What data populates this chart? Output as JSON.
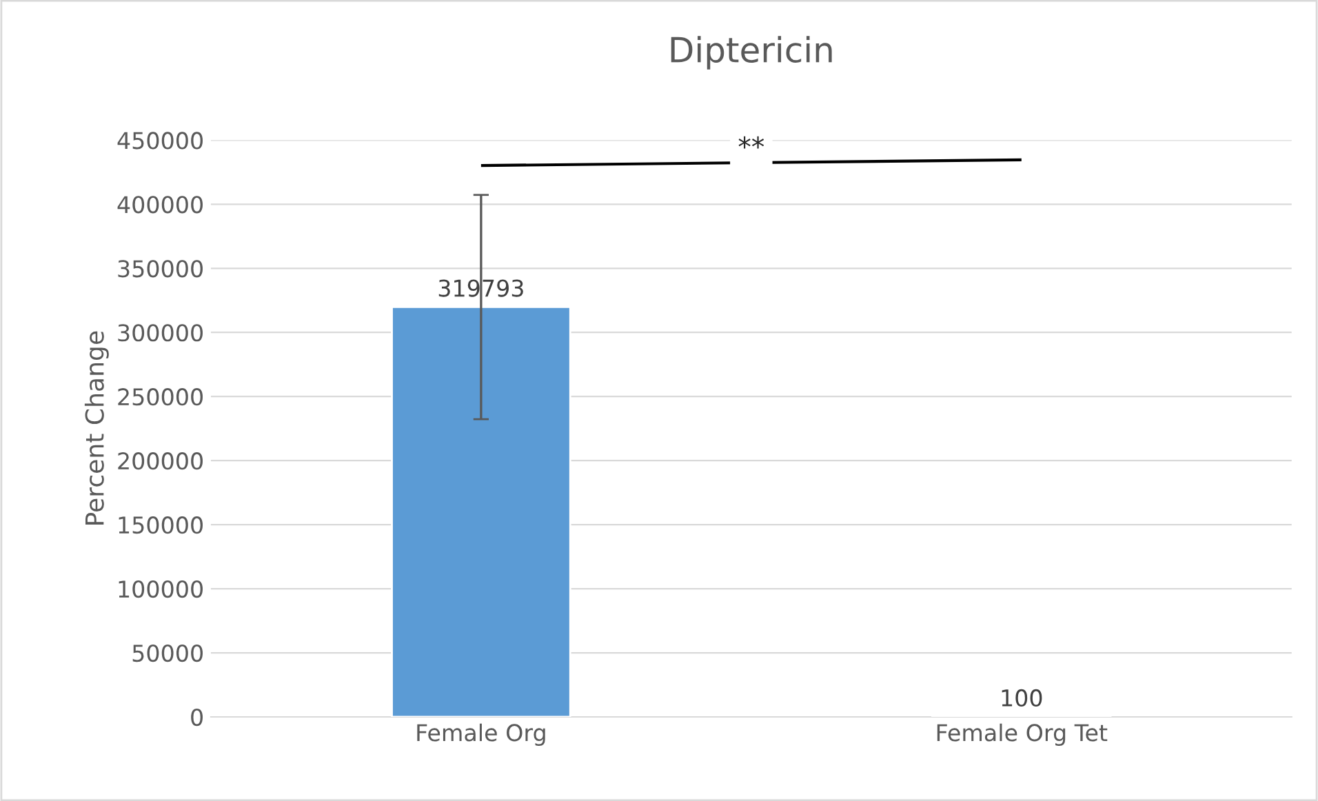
{
  "chart_data": {
    "type": "bar",
    "title": "Diptericin",
    "ylabel": "Percent Change",
    "categories": [
      "Female Org",
      "Female Org Tet"
    ],
    "values": [
      319793,
      100
    ],
    "errors": [
      87500,
      null
    ],
    "color": "#5b9bd5",
    "data_labels": true,
    "ylim": [
      0,
      450000
    ],
    "yticks": [
      0,
      50000,
      100000,
      150000,
      200000,
      250000,
      300000,
      350000,
      400000,
      450000
    ],
    "grid": "y",
    "annotations": [
      "**"
    ]
  }
}
